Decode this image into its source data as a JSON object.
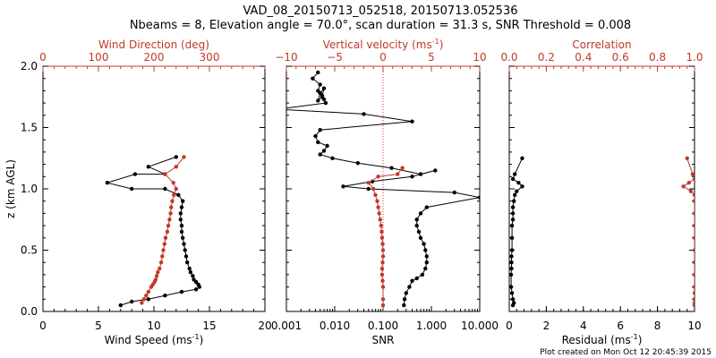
{
  "title_line1": "VAD_08_20150713_052518, 20150713.052536",
  "title_line2": "Nbeams = 8, Elevation angle = 70.0°, scan duration = 31.3 s, SNR Threshold = 0.008",
  "footer": "Plot created on Mon Oct 12 20:45:39 2015",
  "colors": {
    "axis": "#000000",
    "red": "#c0392b"
  },
  "chart_data": [
    {
      "type": "scatter",
      "xlabel": "Wind Speed (ms",
      "xlabel_sup": "-1",
      "xlabel_close": ")",
      "ylabel": "z (km AGL)",
      "top_xlabel": "Wind Direction (deg)",
      "xlim": [
        0,
        20
      ],
      "ylim": [
        0,
        2.0
      ],
      "top_xlim": [
        0,
        400
      ],
      "xticks": [
        "0",
        "5",
        "10",
        "15",
        "20"
      ],
      "top_xticks": [
        "0",
        "100",
        "200",
        "300"
      ],
      "yticks": [
        "0.0",
        "0.5",
        "1.0",
        "1.5",
        "2.0"
      ],
      "series": [
        {
          "color": "black",
          "axis": "bottom",
          "connected": true,
          "x": [
            12.0,
            9.5,
            11.0,
            8.3,
            5.8,
            8.0,
            11.0,
            12.2,
            12.6,
            12.5,
            12.4,
            12.4,
            12.5,
            12.5,
            12.6,
            12.7,
            12.8,
            12.9,
            13.0,
            13.2,
            13.3,
            13.5,
            13.6,
            13.8,
            14.0,
            14.1,
            13.8,
            12.5,
            11.0,
            9.5,
            8.0,
            7.0
          ],
          "y": [
            1.26,
            1.18,
            1.12,
            1.12,
            1.05,
            1.0,
            1.0,
            0.95,
            0.9,
            0.85,
            0.8,
            0.75,
            0.7,
            0.65,
            0.6,
            0.55,
            0.5,
            0.45,
            0.4,
            0.35,
            0.32,
            0.29,
            0.26,
            0.24,
            0.22,
            0.2,
            0.18,
            0.16,
            0.13,
            0.1,
            0.08,
            0.05
          ]
        },
        {
          "color": "red",
          "axis": "top",
          "connected": true,
          "x": [
            254,
            240,
            220,
            235,
            240,
            236,
            233,
            231,
            230,
            228,
            226,
            224,
            221,
            219,
            217,
            215,
            213,
            210,
            207,
            205,
            203,
            201,
            198,
            195,
            190,
            186,
            182,
            178
          ],
          "y": [
            1.26,
            1.18,
            1.12,
            1.05,
            1.0,
            0.95,
            0.9,
            0.85,
            0.8,
            0.75,
            0.7,
            0.65,
            0.6,
            0.55,
            0.5,
            0.45,
            0.4,
            0.35,
            0.32,
            0.29,
            0.26,
            0.24,
            0.22,
            0.2,
            0.16,
            0.13,
            0.1,
            0.07
          ]
        }
      ]
    },
    {
      "type": "scatter",
      "xlabel": "SNR",
      "top_xlabel": "Vertical velocity (ms",
      "top_xlabel_sup": "-1",
      "top_xlabel_close": ")",
      "xscale": "log",
      "xlim": [
        0.001,
        10.0
      ],
      "ylim": [
        0,
        2.0
      ],
      "top_xlim": [
        -10,
        10
      ],
      "xticks": [
        "0.001",
        "0.010",
        "0.100",
        "1.000",
        "10.000"
      ],
      "top_xticks": [
        "−10",
        "−5",
        "0",
        "5",
        "10"
      ],
      "series": [
        {
          "color": "black",
          "axis": "bottom",
          "connected": true,
          "x": [
            0.0045,
            0.0035,
            0.005,
            0.0045,
            0.0055,
            0.0045,
            0.005,
            0.006,
            0.0055,
            0.006,
            0.0065,
            0.00065,
            0.04,
            0.4,
            0.005,
            0.004,
            0.0045,
            0.007,
            0.006,
            0.005,
            0.009,
            0.03,
            0.15,
            0.6,
            1.2,
            0.4,
            0.06,
            0.015,
            0.05,
            3.0,
            10.0,
            0.8,
            0.6,
            0.5,
            0.5,
            0.55,
            0.6,
            0.7,
            0.75,
            0.8,
            0.8,
            0.75,
            0.65,
            0.5,
            0.4,
            0.35,
            0.3,
            0.28,
            0.27
          ],
          "y": [
            1.95,
            1.9,
            1.85,
            1.8,
            1.75,
            1.72,
            1.78,
            1.82,
            1.76,
            1.73,
            1.7,
            1.65,
            1.61,
            1.55,
            1.48,
            1.43,
            1.38,
            1.35,
            1.31,
            1.28,
            1.25,
            1.21,
            1.17,
            1.12,
            1.15,
            1.1,
            1.06,
            1.02,
            1.0,
            0.97,
            0.93,
            0.85,
            0.8,
            0.75,
            0.7,
            0.65,
            0.6,
            0.55,
            0.5,
            0.45,
            0.4,
            0.35,
            0.3,
            0.27,
            0.25,
            0.2,
            0.15,
            0.1,
            0.05
          ]
        },
        {
          "color": "red",
          "axis": "top",
          "connected": true,
          "x": [
            2.0,
            1.5,
            -0.5,
            -1.5,
            -1.0,
            -0.8,
            -0.6,
            -0.5,
            -0.4,
            -0.3,
            -0.2,
            -0.15,
            -0.1,
            -0.05,
            0.0,
            0.0,
            -0.05,
            -0.1,
            -0.1,
            -0.05,
            0.0,
            0.0,
            0.0
          ],
          "y": [
            1.17,
            1.12,
            1.1,
            1.05,
            1.0,
            0.95,
            0.9,
            0.85,
            0.8,
            0.75,
            0.7,
            0.65,
            0.6,
            0.55,
            0.5,
            0.45,
            0.4,
            0.35,
            0.3,
            0.25,
            0.2,
            0.1,
            0.05
          ]
        }
      ],
      "reference_line": {
        "axis": "top",
        "x": 0,
        "style": "dotted",
        "color": "red"
      }
    },
    {
      "type": "scatter",
      "xlabel": "Residual (ms",
      "xlabel_sup": "-1",
      "xlabel_close": ")",
      "top_xlabel": "Correlation",
      "xlim": [
        0,
        10
      ],
      "ylim": [
        0,
        2.0
      ],
      "top_xlim": [
        0,
        1.0
      ],
      "xticks": [
        "0",
        "2",
        "4",
        "6",
        "8",
        "10"
      ],
      "top_xticks": [
        "0.0",
        "0.2",
        "0.4",
        "0.6",
        "0.8",
        "1.0"
      ],
      "series": [
        {
          "color": "black",
          "axis": "bottom",
          "connected": true,
          "x": [
            0.7,
            0.3,
            0.2,
            0.5,
            0.7,
            0.4,
            0.3,
            0.25,
            0.2,
            0.2,
            0.2,
            0.15,
            0.15,
            0.15,
            0.12,
            0.12,
            0.12,
            0.1,
            0.1,
            0.15,
            0.2,
            0.25,
            0.2
          ],
          "y": [
            1.25,
            1.12,
            1.08,
            1.05,
            1.02,
            0.98,
            0.95,
            0.9,
            0.85,
            0.8,
            0.75,
            0.7,
            0.6,
            0.5,
            0.45,
            0.4,
            0.35,
            0.3,
            0.2,
            0.15,
            0.1,
            0.07,
            0.05
          ]
        },
        {
          "color": "red",
          "axis": "top",
          "connected": true,
          "x": [
            0.96,
            0.99,
            1.0,
            0.97,
            0.94,
            0.98,
            1.0,
            1.0,
            1.0,
            1.0,
            1.0,
            1.0,
            1.0,
            1.0,
            1.0,
            1.0,
            1.0,
            1.0,
            1.0
          ],
          "y": [
            1.25,
            1.12,
            1.08,
            1.05,
            1.02,
            0.98,
            0.95,
            0.9,
            0.8,
            0.7,
            0.6,
            0.5,
            0.4,
            0.3,
            0.2,
            0.15,
            0.1,
            0.07,
            0.05
          ]
        }
      ]
    }
  ]
}
